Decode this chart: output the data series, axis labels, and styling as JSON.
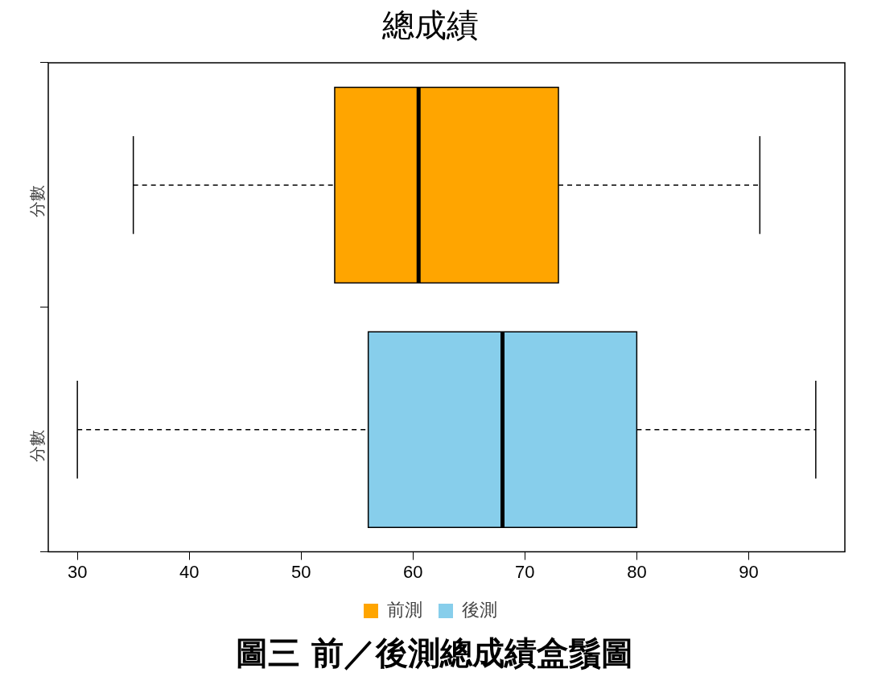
{
  "chart_data": {
    "type": "box",
    "title": "總成績",
    "orientation": "horizontal",
    "categories": [
      "分數",
      "分數"
    ],
    "series": [
      {
        "name": "前測",
        "color": "#ffa500",
        "boxes": [
          {
            "low": 35,
            "q1": 53,
            "median": 60.5,
            "q3": 73,
            "high": 91
          },
          null
        ]
      },
      {
        "name": "後測",
        "color": "#87ceeb",
        "boxes": [
          null,
          {
            "low": 30,
            "q1": 56,
            "median": 68,
            "q3": 80,
            "high": 96
          }
        ]
      }
    ],
    "xlim": [
      27.4,
      98.6
    ],
    "xticks": [
      30,
      40,
      50,
      60,
      70,
      80,
      90
    ],
    "grid": false,
    "legend": "bottom",
    "line_style": "dashed",
    "annotations": [
      "圖三 前／後測總成績盒鬚圖"
    ]
  }
}
